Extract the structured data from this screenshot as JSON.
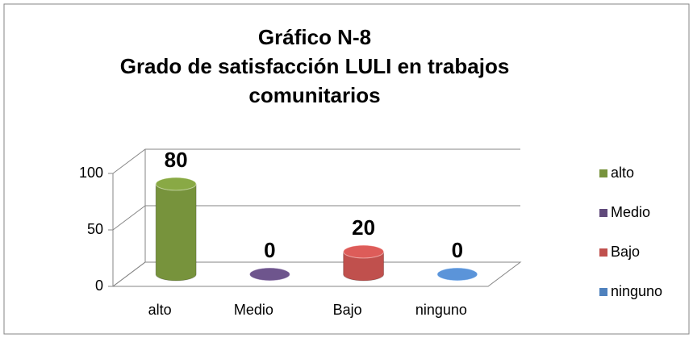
{
  "chart_data": {
    "type": "bar3d",
    "title": "Gráfico N-8",
    "subtitle": "Grado de satisfacción LULI en trabajos comunitarios",
    "categories": [
      "alto",
      "Medio",
      "Bajo",
      "ninguno"
    ],
    "values": [
      80,
      0,
      20,
      0
    ],
    "colors": [
      "#77933c",
      "#604a7b",
      "#c0504d",
      "#4f81bd"
    ],
    "ylim": [
      0,
      100
    ],
    "yticks": [
      0,
      50,
      100
    ],
    "grid": true,
    "legend": "right"
  }
}
